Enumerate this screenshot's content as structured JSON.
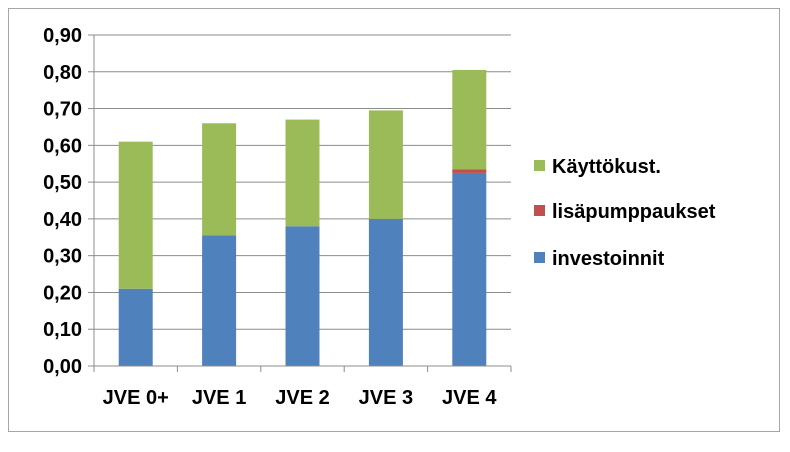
{
  "chart_data": {
    "type": "bar",
    "stacked": true,
    "title": "",
    "xlabel": "",
    "ylabel": "",
    "categories": [
      "JVE 0+",
      "JVE 1",
      "JVE 2",
      "JVE 3",
      "JVE 4"
    ],
    "series": [
      {
        "name": "investoinnit",
        "color": "#4f81bd",
        "values": [
          0.21,
          0.355,
          0.38,
          0.4,
          0.525
        ]
      },
      {
        "name": "lisäpumppaukset",
        "color": "#c0504d",
        "values": [
          0.0,
          0.0,
          0.0,
          0.0,
          0.01
        ]
      },
      {
        "name": "Käyttökust.",
        "color": "#9bbb59",
        "values": [
          0.4,
          0.305,
          0.29,
          0.295,
          0.27
        ]
      }
    ],
    "ylim": [
      0,
      0.9
    ],
    "yticks": [
      "0,00",
      "0,10",
      "0,20",
      "0,30",
      "0,40",
      "0,50",
      "0,60",
      "0,70",
      "0,80",
      "0,90"
    ],
    "grid": true,
    "legend_position": "right",
    "legend_order": [
      "Käyttökust.",
      "lisäpumppaukset",
      "investoinnit"
    ]
  }
}
